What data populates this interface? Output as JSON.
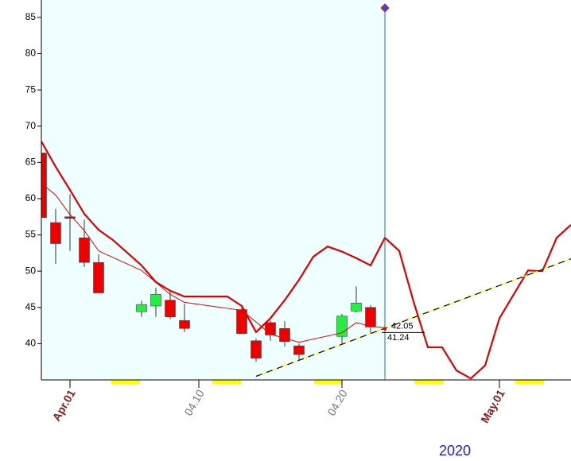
{
  "chart_data": {
    "type": "candlestick",
    "x": [
      "2020-03-30",
      "2020-03-31",
      "2020-04-01",
      "2020-04-02",
      "2020-04-03",
      "2020-04-06",
      "2020-04-07",
      "2020-04-08",
      "2020-04-09",
      "2020-04-13",
      "2020-04-14",
      "2020-04-15",
      "2020-04-16",
      "2020-04-17",
      "2020-04-20",
      "2020-04-21",
      "2020-04-22"
    ],
    "open": [
      66.3,
      56.7,
      57.5,
      54.6,
      51.2,
      44.4,
      45.2,
      46.0,
      43.2,
      44.7,
      40.4,
      42.9,
      42.1,
      39.7,
      41.0,
      44.5,
      45.0
    ],
    "high": [
      67.0,
      58.6,
      60.6,
      57.1,
      52.3,
      45.9,
      47.7,
      47.2,
      45.5,
      45.0,
      40.7,
      43.2,
      43.1,
      40.0,
      44.1,
      47.9,
      45.3
    ],
    "low": [
      56.4,
      51.0,
      52.8,
      50.6,
      47.0,
      43.7,
      43.7,
      43.4,
      41.6,
      41.3,
      37.5,
      40.4,
      39.6,
      37.8,
      39.9,
      44.3,
      41.5
    ],
    "close": [
      57.4,
      53.8,
      57.3,
      51.2,
      47.0,
      45.4,
      46.8,
      43.7,
      42.1,
      41.4,
      38.0,
      41.2,
      40.3,
      38.5,
      43.8,
      45.6,
      42.3
    ],
    "up_color": "#22ee44",
    "down_color": "#ee0000",
    "lines": [
      {
        "color": "#e00000",
        "x": [
          "2020-03-30",
          "2020-03-31",
          "2020-04-01",
          "2020-04-02",
          "2020-04-03",
          "2020-04-04",
          "2020-04-06",
          "2020-04-07",
          "2020-04-08",
          "2020-04-09",
          "2020-04-10",
          "2020-04-12",
          "2020-04-13",
          "2020-04-14",
          "2020-04-15",
          "2020-04-16",
          "2020-04-17",
          "2020-04-18",
          "2020-04-19",
          "2020-04-20",
          "2020-04-21",
          "2020-04-22",
          "2020-04-23",
          "2020-04-24",
          "2020-04-25",
          "2020-04-26",
          "2020-04-27",
          "2020-04-28",
          "2020-04-29",
          "2020-04-30",
          "2020-05-01",
          "2020-05-02",
          "2020-05-03",
          "2020-05-04",
          "2020-05-05",
          "2020-05-06"
        ],
        "values": [
          67.9,
          64.4,
          61.2,
          57.9,
          55.7,
          54.3,
          50.8,
          48.5,
          47.3,
          46.5,
          46.5,
          46.5,
          45.2,
          41.6,
          43.5,
          46.0,
          48.8,
          52.0,
          53.4,
          52.7,
          51.8,
          50.8,
          54.6,
          52.8,
          45.8,
          39.5,
          39.5,
          36.3,
          35.2,
          37.0,
          43.5,
          46.8,
          50.1,
          50.0,
          54.6,
          56.4
        ]
      },
      {
        "color": "#e00000",
        "x": [
          "2020-03-30",
          "2020-03-31",
          "2020-04-01",
          "2020-04-02",
          "2020-04-03",
          "2020-04-06",
          "2020-04-08",
          "2020-04-09",
          "2020-04-13",
          "2020-04-14",
          "2020-04-15",
          "2020-04-17",
          "2020-04-20",
          "2020-04-21",
          "2020-04-22",
          "2020-04-23"
        ],
        "values": [
          62.1,
          60.5,
          57.8,
          55.6,
          52.8,
          50.1,
          46.8,
          45.7,
          44.6,
          43.0,
          41.3,
          40.2,
          41.5,
          42.9,
          42.4,
          42.2
        ]
      },
      {
        "color": "#000000",
        "style": "dashed",
        "x": [
          "2020-04-14",
          "2020-05-06"
        ],
        "values": [
          35.5,
          51.7
        ]
      }
    ],
    "cursor": {
      "x": "2020-04-23",
      "labels": [
        42.05,
        41.24
      ]
    },
    "xlim": [
      "2020-03-30",
      "2020-05-06"
    ],
    "xticks": [
      {
        "value": "2020-04-01",
        "label": "Apr.01",
        "color": "#8b1a1a"
      },
      {
        "value": "2020-04-10",
        "label": "04.10",
        "color": "#777777"
      },
      {
        "value": "2020-04-20",
        "label": "04.20",
        "color": "#777777"
      },
      {
        "value": "2020-05-01",
        "label": "May.01",
        "color": "#8b1a1a"
      }
    ],
    "ylim": [
      35,
      87.4
    ],
    "yticks": [
      40,
      45,
      50,
      55,
      60,
      65,
      70,
      75,
      80,
      85
    ],
    "year_label": "2020"
  }
}
